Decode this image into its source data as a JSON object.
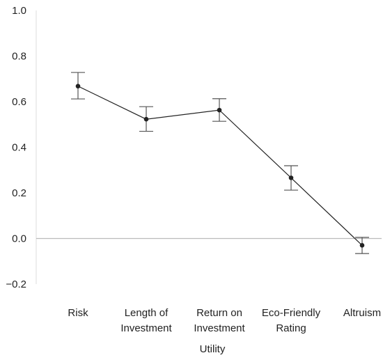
{
  "chart_data": {
    "type": "line",
    "xlabel": "Utility",
    "ylabel": "",
    "title": "",
    "ylim": [
      -0.2,
      1.0
    ],
    "yticks": [
      "1.0",
      "0.8",
      "0.6",
      "0.4",
      "0.2",
      "0.0",
      "−0.2"
    ],
    "ytick_values": [
      1.0,
      0.8,
      0.6,
      0.4,
      0.2,
      0.0,
      -0.2
    ],
    "categories": [
      [
        "Risk"
      ],
      [
        "Length of",
        "Investment"
      ],
      [
        "Return on",
        "Investment"
      ],
      [
        "Eco-Friendly",
        "Rating"
      ],
      [
        "Altruism"
      ]
    ],
    "values": [
      0.668,
      0.523,
      0.563,
      0.266,
      -0.03
    ],
    "error_upper": [
      0.728,
      0.578,
      0.613,
      0.319,
      0.005
    ],
    "error_lower": [
      0.612,
      0.47,
      0.514,
      0.212,
      -0.066
    ],
    "grid": false,
    "zero_line": true,
    "colors": {
      "line": "#222222",
      "error_bar": "#555555",
      "zero_line": "#bbbbbb",
      "axis": "#dddddd"
    }
  }
}
